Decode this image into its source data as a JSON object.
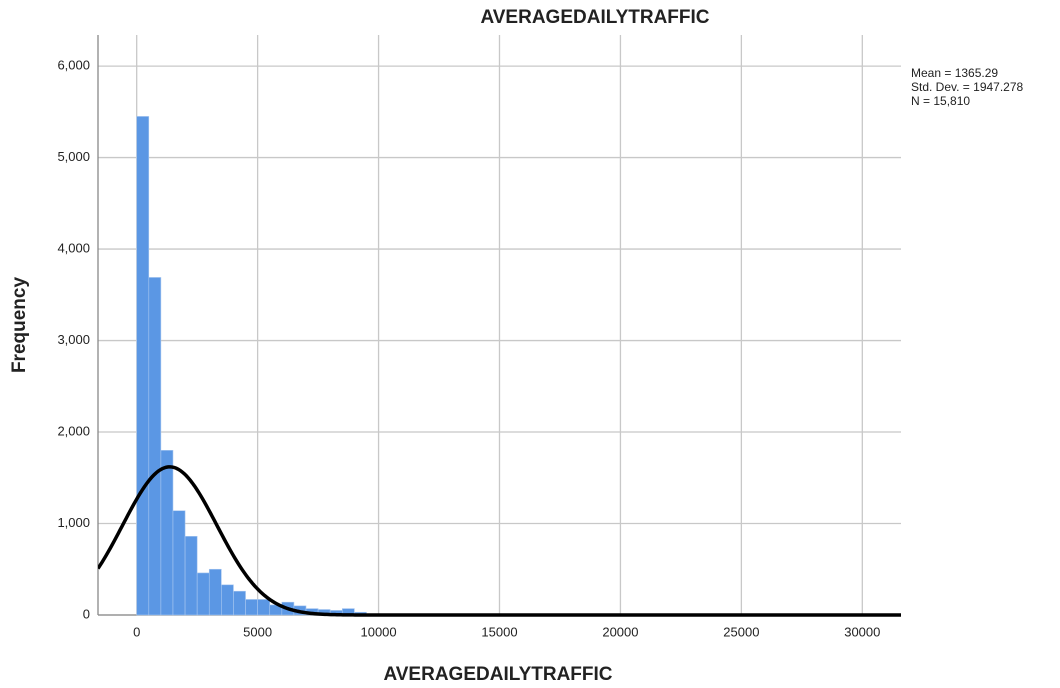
{
  "chart_data": {
    "type": "histogram",
    "title": "AVERAGEDAILYTRAFFIC",
    "x_label": "AVERAGEDAILYTRAFFIC",
    "y_label": "Frequency",
    "bins": [
      0,
      500,
      1000,
      1500,
      2000,
      2500,
      3000,
      3500,
      4000,
      4500,
      5000,
      5500,
      6000,
      6500,
      7000,
      7500,
      8000,
      8500,
      9000,
      9500,
      10000
    ],
    "values": [
      5450,
      3690,
      1800,
      1140,
      860,
      460,
      500,
      330,
      260,
      170,
      170,
      110,
      140,
      100,
      70,
      60,
      50,
      70,
      30,
      10
    ],
    "color": "#5b97e4",
    "xlim": [
      -1600,
      31600
    ],
    "xticks": [
      0,
      5000,
      10000,
      15000,
      20000,
      25000,
      30000
    ],
    "ylim": [
      0,
      6340
    ],
    "yticks": [
      0,
      {
        "value": 1000,
        "label": "1,000"
      },
      {
        "value": 2000,
        "label": "2,000"
      },
      {
        "value": 3000,
        "label": "3,000"
      },
      {
        "value": 4000,
        "label": "4,000"
      },
      {
        "value": 5000,
        "label": "5,000"
      },
      {
        "value": 6000,
        "label": "6,000"
      }
    ],
    "grid": true,
    "stats": {
      "mean": {
        "value": 1365.29,
        "label": "Mean = 1365.29"
      },
      "std": {
        "value": 1947.278,
        "label": "Std. Dev. = 1947.278"
      },
      "n": {
        "value": 15810,
        "label": "N = 15,810"
      }
    }
  }
}
